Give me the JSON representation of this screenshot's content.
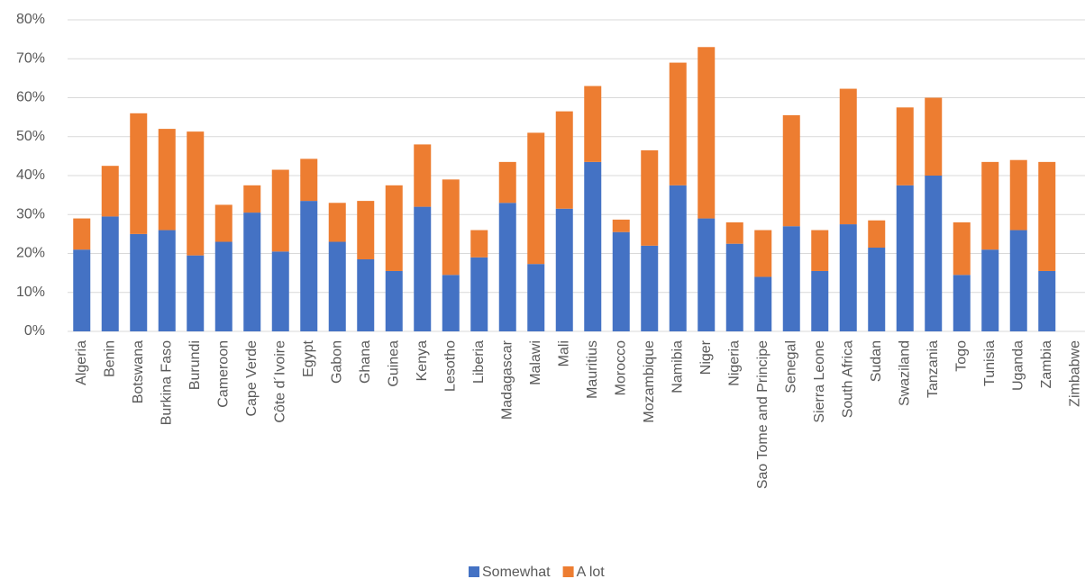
{
  "chart_data": {
    "type": "stacked_bar",
    "categories": [
      "Algeria",
      "Benin",
      "Botswana",
      "Burkina Faso",
      "Burundi",
      "Cameroon",
      "Cape Verde",
      "Côte d´Ivoire",
      "Egypt",
      "Gabon",
      "Ghana",
      "Guinea",
      "Kenya",
      "Lesotho",
      "Liberia",
      "Madagascar",
      "Malawi",
      "Mali",
      "Mauritius",
      "Morocco",
      "Mozambique",
      "Namibia",
      "Niger",
      "Nigeria",
      "Sao Tome and Principe",
      "Senegal",
      "Sierra Leone",
      "South Africa",
      "Sudan",
      "Swaziland",
      "Tanzania",
      "Togo",
      "Tunisia",
      "Uganda",
      "Zambia",
      "Zimbabwe"
    ],
    "series": [
      {
        "name": "Somewhat",
        "color": "#4472c4",
        "values": [
          21,
          29.5,
          25,
          26,
          19.5,
          23,
          30.5,
          20.5,
          33.5,
          23,
          18.5,
          15.5,
          32,
          14.5,
          19,
          33,
          17.3,
          31.5,
          43.5,
          25.5,
          22,
          37.5,
          29,
          22.5,
          14,
          27,
          15.5,
          27.5,
          21.5,
          37.5,
          40,
          14.5,
          21,
          26,
          15.5,
          null
        ]
      },
      {
        "name": "A lot",
        "color": "#ed7d31",
        "values": [
          8,
          13,
          31,
          26,
          31.8,
          9.5,
          7,
          21,
          10.8,
          10,
          15,
          22,
          16,
          24.5,
          7,
          10.5,
          33.7,
          25,
          19.5,
          3.2,
          24.5,
          31.5,
          44,
          5.5,
          12,
          28.5,
          10.5,
          34.8,
          7,
          20,
          20,
          13.5,
          22.5,
          18,
          28,
          null
        ]
      }
    ],
    "ylim": [
      0,
      80
    ],
    "yticks": [
      {
        "value": 0,
        "label": "0%"
      },
      {
        "value": 10,
        "label": "10%"
      },
      {
        "value": 20,
        "label": "20%"
      },
      {
        "value": 30,
        "label": "30%"
      },
      {
        "value": 40,
        "label": "40%"
      },
      {
        "value": 50,
        "label": "50%"
      },
      {
        "value": 60,
        "label": "60%"
      },
      {
        "value": 70,
        "label": "70%"
      },
      {
        "value": 80,
        "label": "80%"
      }
    ],
    "grid": true,
    "legend": "bottom"
  }
}
